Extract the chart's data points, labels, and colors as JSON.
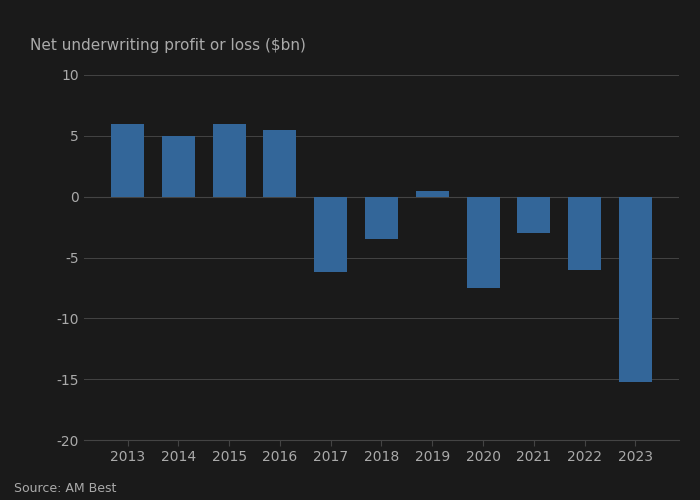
{
  "years": [
    2013,
    2014,
    2015,
    2016,
    2017,
    2018,
    2019,
    2020,
    2021,
    2022,
    2023
  ],
  "values": [
    6.0,
    5.0,
    6.0,
    5.5,
    -6.2,
    -3.5,
    0.5,
    -7.5,
    -3.0,
    -6.0,
    -15.2
  ],
  "bar_color": "#336699",
  "background_color": "#1a1a1a",
  "text_color": "#aaaaaa",
  "ylabel": "Net underwriting profit or loss ($bn)",
  "source": "Source: AM Best",
  "ylim": [
    -20,
    10
  ],
  "yticks": [
    -20,
    -15,
    -10,
    -5,
    0,
    5,
    10
  ],
  "grid_color": "#444444",
  "title_fontsize": 11,
  "tick_fontsize": 10,
  "source_fontsize": 9
}
